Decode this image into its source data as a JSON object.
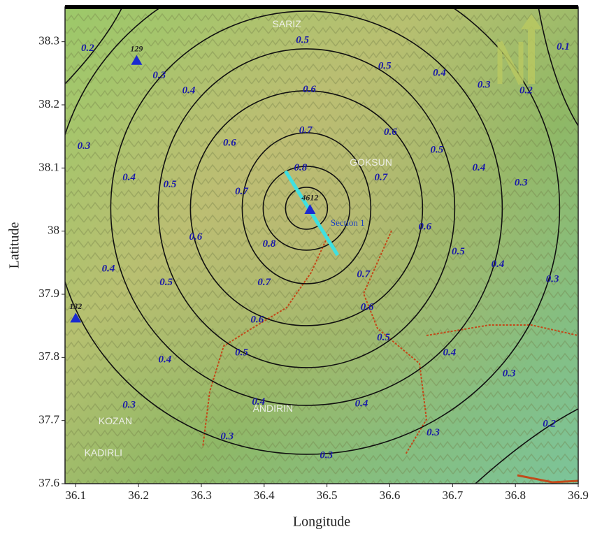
{
  "chart_data": {
    "type": "contour-map",
    "xlabel": "Longitude",
    "ylabel": "Latitude",
    "xlim": [
      36.083,
      36.9
    ],
    "ylim": [
      37.6,
      38.355
    ],
    "xticks": [
      36.1,
      36.2,
      36.3,
      36.4,
      36.5,
      36.6,
      36.7,
      36.8,
      36.9
    ],
    "yticks": [
      37.6,
      37.7,
      37.8,
      37.9,
      38,
      38.1,
      38.2,
      38.3
    ],
    "stations": [
      {
        "label": "129",
        "lon": 36.197,
        "lat": 38.27
      },
      {
        "label": "132",
        "lon": 36.1,
        "lat": 37.862
      },
      {
        "label": "4612",
        "lon": 36.473,
        "lat": 38.034
      }
    ],
    "places": [
      {
        "label": "SARIZ",
        "lon": 36.436,
        "lat": 38.327
      },
      {
        "label": "GOKSUN",
        "lon": 36.57,
        "lat": 38.108
      },
      {
        "label": "ANDIRIN",
        "lon": 36.414,
        "lat": 37.718
      },
      {
        "label": "KOZAN",
        "lon": 36.163,
        "lat": 37.698
      },
      {
        "label": "KADIRLI",
        "lon": 36.144,
        "lat": 37.648
      }
    ],
    "section": {
      "label": "Section 1",
      "start": [
        36.434,
        38.095
      ],
      "end": [
        36.517,
        37.962
      ],
      "color": "#3fe0e0"
    },
    "contour_labels": [
      {
        "text": 0.8,
        "lon": 36.458,
        "lat": 38.1
      },
      {
        "text": 0.8,
        "lon": 36.408,
        "lat": 37.979
      },
      {
        "text": 0.7,
        "lon": 36.364,
        "lat": 38.062
      },
      {
        "text": 0.7,
        "lon": 36.466,
        "lat": 38.159
      },
      {
        "text": 0.7,
        "lon": 36.586,
        "lat": 38.084
      },
      {
        "text": 0.7,
        "lon": 36.4,
        "lat": 37.918
      },
      {
        "text": 0.7,
        "lon": 36.558,
        "lat": 37.931
      },
      {
        "text": 0.6,
        "lon": 36.472,
        "lat": 38.224
      },
      {
        "text": 0.6,
        "lon": 36.345,
        "lat": 38.139
      },
      {
        "text": 0.6,
        "lon": 36.601,
        "lat": 38.156
      },
      {
        "text": 0.6,
        "lon": 36.291,
        "lat": 37.99
      },
      {
        "text": 0.6,
        "lon": 36.656,
        "lat": 38.006
      },
      {
        "text": 0.6,
        "lon": 36.389,
        "lat": 37.859
      },
      {
        "text": 0.6,
        "lon": 36.564,
        "lat": 37.879
      },
      {
        "text": 0.5,
        "lon": 36.461,
        "lat": 38.302
      },
      {
        "text": 0.5,
        "lon": 36.592,
        "lat": 38.261
      },
      {
        "text": 0.5,
        "lon": 36.25,
        "lat": 38.073
      },
      {
        "text": 0.5,
        "lon": 36.675,
        "lat": 38.128
      },
      {
        "text": 0.5,
        "lon": 36.244,
        "lat": 37.918
      },
      {
        "text": 0.5,
        "lon": 36.709,
        "lat": 37.967
      },
      {
        "text": 0.5,
        "lon": 36.364,
        "lat": 37.807
      },
      {
        "text": 0.5,
        "lon": 36.59,
        "lat": 37.831
      },
      {
        "text": 0.4,
        "lon": 36.28,
        "lat": 38.222
      },
      {
        "text": 0.4,
        "lon": 36.185,
        "lat": 38.084
      },
      {
        "text": 0.4,
        "lon": 36.152,
        "lat": 37.94
      },
      {
        "text": 0.4,
        "lon": 36.242,
        "lat": 37.796
      },
      {
        "text": 0.4,
        "lon": 36.391,
        "lat": 37.729
      },
      {
        "text": 0.4,
        "lon": 36.555,
        "lat": 37.726
      },
      {
        "text": 0.4,
        "lon": 36.695,
        "lat": 37.807
      },
      {
        "text": 0.4,
        "lon": 36.772,
        "lat": 37.947
      },
      {
        "text": 0.4,
        "lon": 36.742,
        "lat": 38.1
      },
      {
        "text": 0.4,
        "lon": 36.679,
        "lat": 38.25
      },
      {
        "text": 0.3,
        "lon": 36.233,
        "lat": 38.246
      },
      {
        "text": 0.3,
        "lon": 36.113,
        "lat": 38.134
      },
      {
        "text": 0.3,
        "lon": 36.185,
        "lat": 37.724
      },
      {
        "text": 0.3,
        "lon": 36.341,
        "lat": 37.674
      },
      {
        "text": 0.3,
        "lon": 36.499,
        "lat": 37.644
      },
      {
        "text": 0.3,
        "lon": 36.669,
        "lat": 37.68
      },
      {
        "text": 0.3,
        "lon": 36.79,
        "lat": 37.774
      },
      {
        "text": 0.3,
        "lon": 36.859,
        "lat": 37.923
      },
      {
        "text": 0.3,
        "lon": 36.809,
        "lat": 38.076
      },
      {
        "text": 0.3,
        "lon": 36.75,
        "lat": 38.231
      },
      {
        "text": 0.2,
        "lon": 36.119,
        "lat": 38.289
      },
      {
        "text": 0.2,
        "lon": 36.854,
        "lat": 37.694
      },
      {
        "text": 0.2,
        "lon": 36.817,
        "lat": 38.222
      },
      {
        "text": 0.1,
        "lon": 36.876,
        "lat": 38.291
      }
    ]
  }
}
